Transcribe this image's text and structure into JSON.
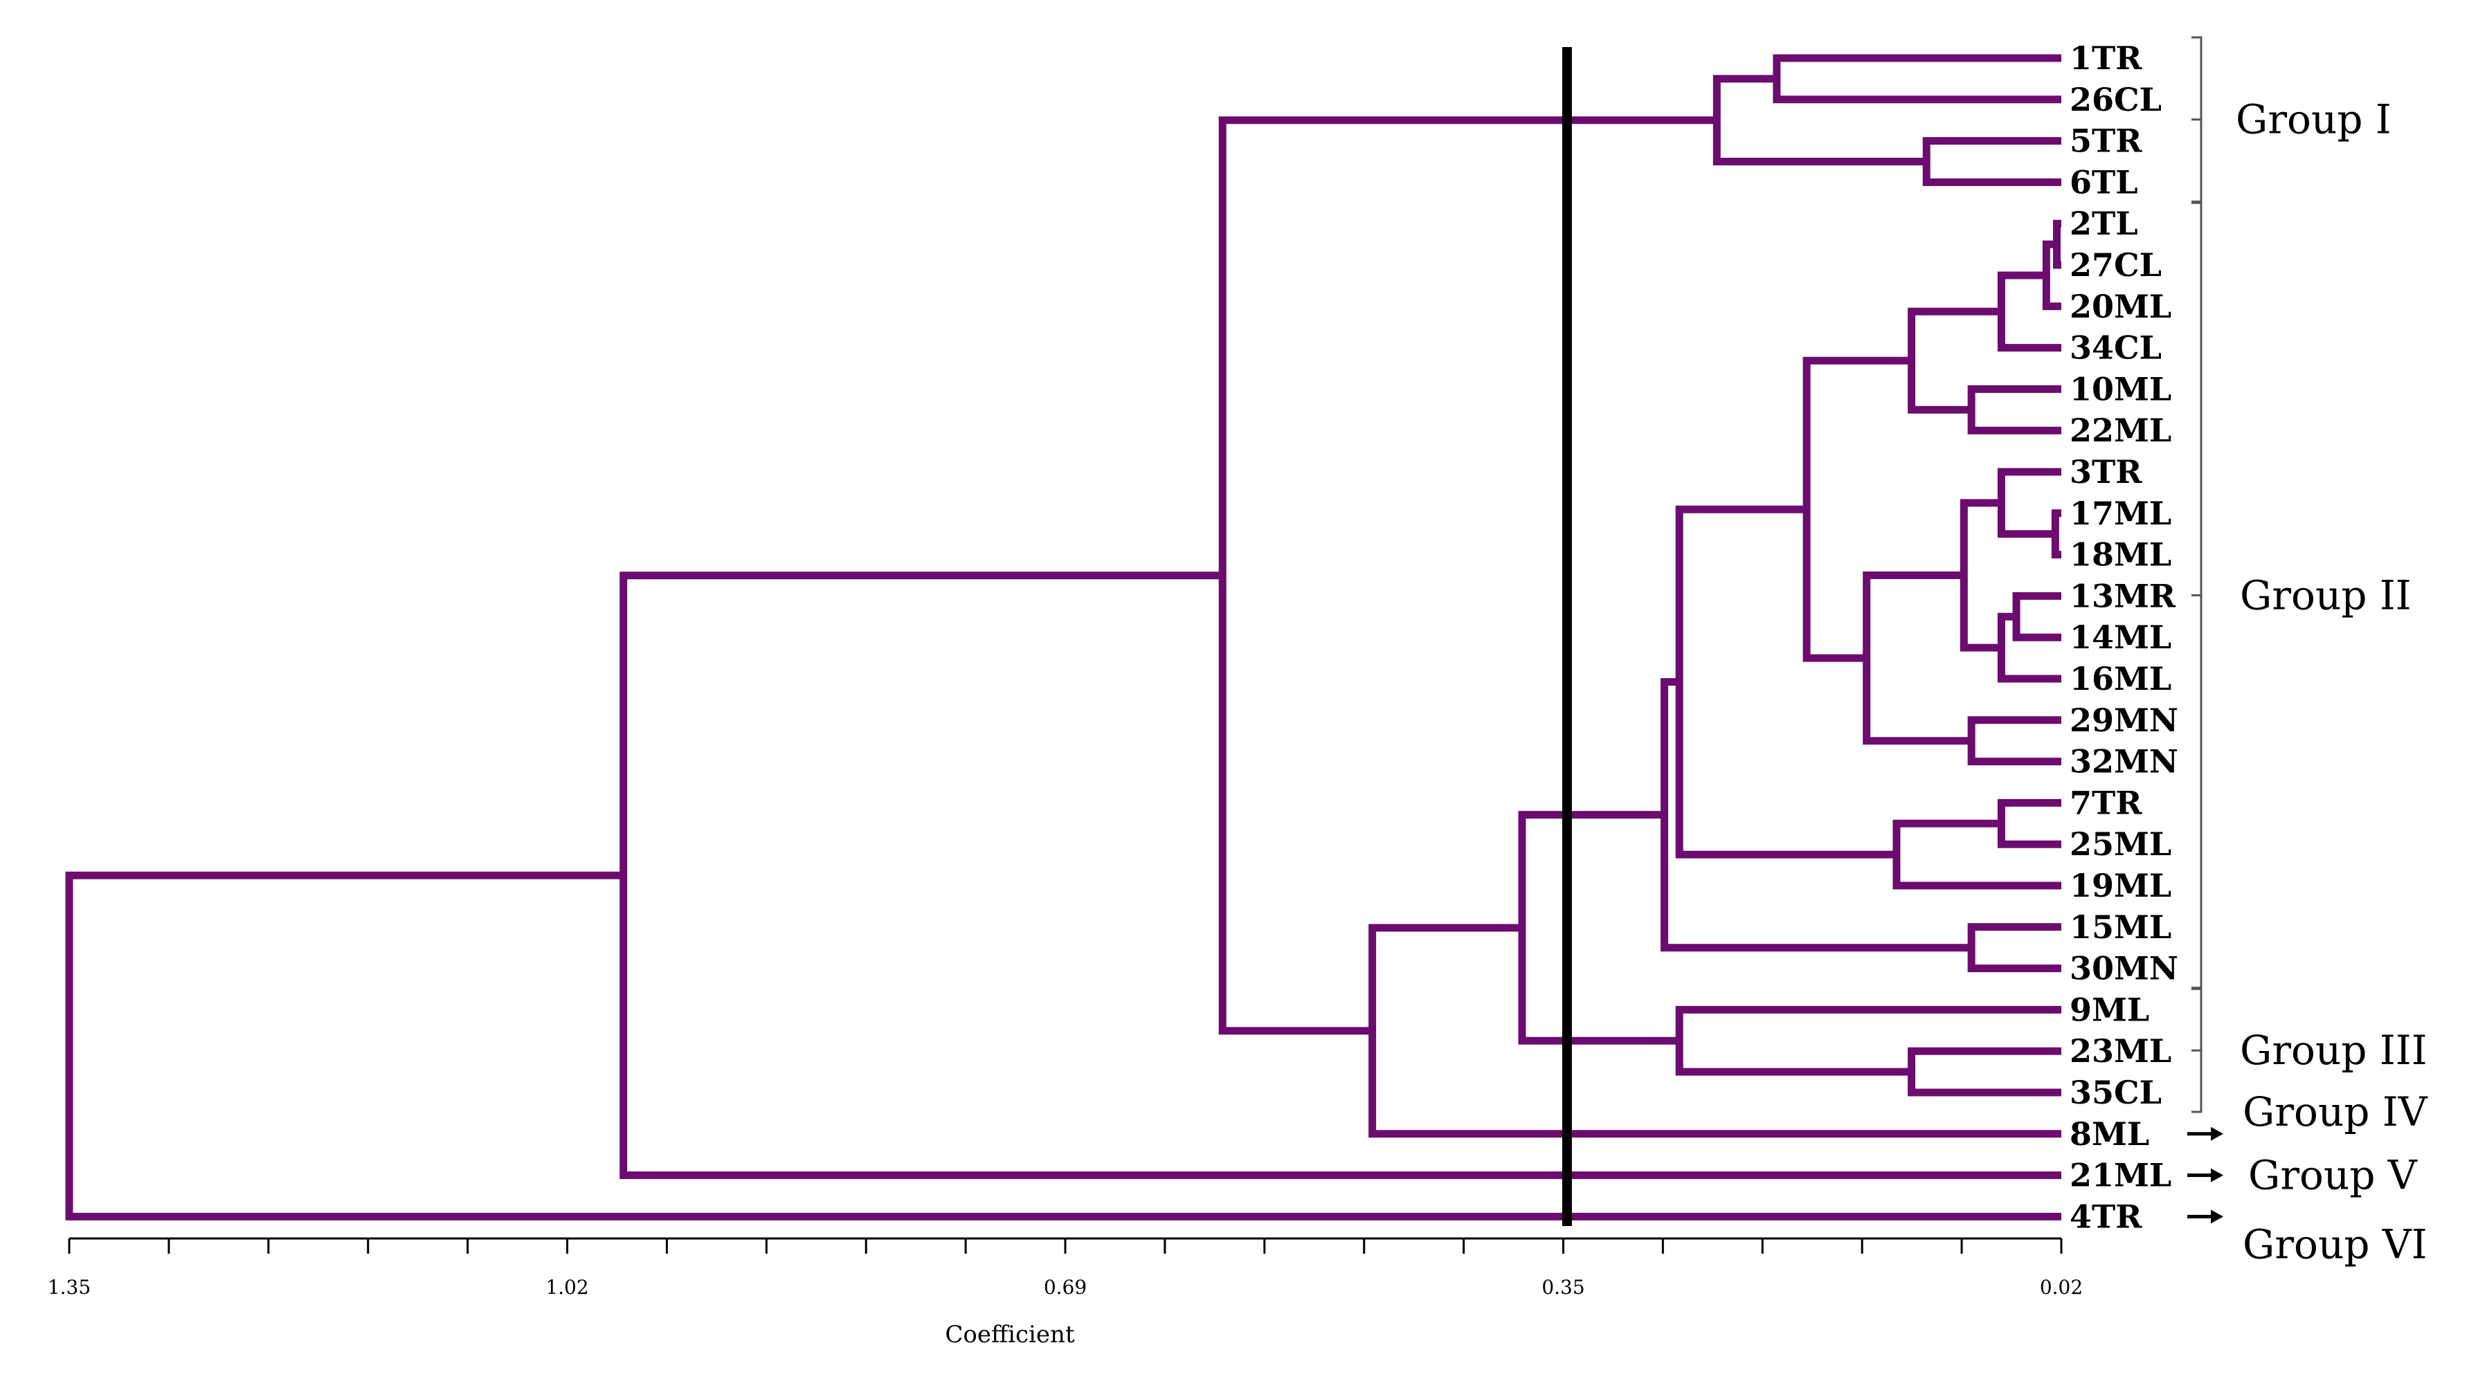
{
  "diagram": {
    "type": "dendrogram",
    "axis": {
      "min": 0.02,
      "max": 1.35,
      "ticks": [
        "1.35",
        "1.02",
        "0.69",
        "0.35",
        "0.02"
      ],
      "label": "Coefficient",
      "cut_value": 0.35
    },
    "leaves": [
      "1TR",
      "26CL",
      "5TR",
      "6TL",
      "2TL",
      "27CL",
      "20ML",
      "34CL",
      "10ML",
      "22ML",
      "3TR",
      "17ML",
      "18ML",
      "13MR",
      "14ML",
      "16ML",
      "29MN",
      "32MN",
      "7TR",
      "25ML",
      "19ML",
      "15ML",
      "30MN",
      "9ML",
      "23ML",
      "35CL",
      "8ML",
      "21ML",
      "4TR"
    ],
    "groups": [
      {
        "label": "Group I"
      },
      {
        "label": "Group II"
      },
      {
        "label": "Group III"
      },
      {
        "label": "Group IV"
      },
      {
        "label": "Group V"
      },
      {
        "label": "Group VI"
      }
    ],
    "merges": [
      {
        "a": "L0",
        "b": "L1",
        "h": 0.21
      },
      {
        "a": "L2",
        "b": "L3",
        "h": 0.11
      },
      {
        "a": "M0",
        "b": "M1",
        "h": 0.25
      },
      {
        "a": "L4",
        "b": "L5",
        "h": 0.023
      },
      {
        "a": "M3",
        "b": "L6",
        "h": 0.03
      },
      {
        "a": "M4",
        "b": "L7",
        "h": 0.06
      },
      {
        "a": "L8",
        "b": "L9",
        "h": 0.08
      },
      {
        "a": "M5",
        "b": "M6",
        "h": 0.12
      },
      {
        "a": "L11",
        "b": "L12",
        "h": 0.024
      },
      {
        "a": "L10",
        "b": "M8",
        "h": 0.06
      },
      {
        "a": "L13",
        "b": "L14",
        "h": 0.05
      },
      {
        "a": "M10",
        "b": "L15",
        "h": 0.06
      },
      {
        "a": "M9",
        "b": "M11",
        "h": 0.085
      },
      {
        "a": "L16",
        "b": "L17",
        "h": 0.08
      },
      {
        "a": "M12",
        "b": "M13",
        "h": 0.15
      },
      {
        "a": "M7",
        "b": "M14",
        "h": 0.19
      },
      {
        "a": "L18",
        "b": "L19",
        "h": 0.06
      },
      {
        "a": "M16",
        "b": "L20",
        "h": 0.13
      },
      {
        "a": "M15",
        "b": "M17",
        "h": 0.275
      },
      {
        "a": "L21",
        "b": "L22",
        "h": 0.08
      },
      {
        "a": "M18",
        "b": "M19",
        "h": 0.285
      },
      {
        "a": "L24",
        "b": "L25",
        "h": 0.12
      },
      {
        "a": "L23",
        "b": "M21",
        "h": 0.275
      },
      {
        "a": "M20",
        "b": "M22",
        "h": 0.38
      },
      {
        "a": "M23",
        "b": "L26",
        "h": 0.48
      },
      {
        "a": "M2",
        "b": "M24",
        "h": 0.58
      },
      {
        "a": "M25",
        "b": "L27",
        "h": 0.98
      },
      {
        "a": "M26",
        "b": "L28",
        "h": 1.35
      }
    ]
  }
}
